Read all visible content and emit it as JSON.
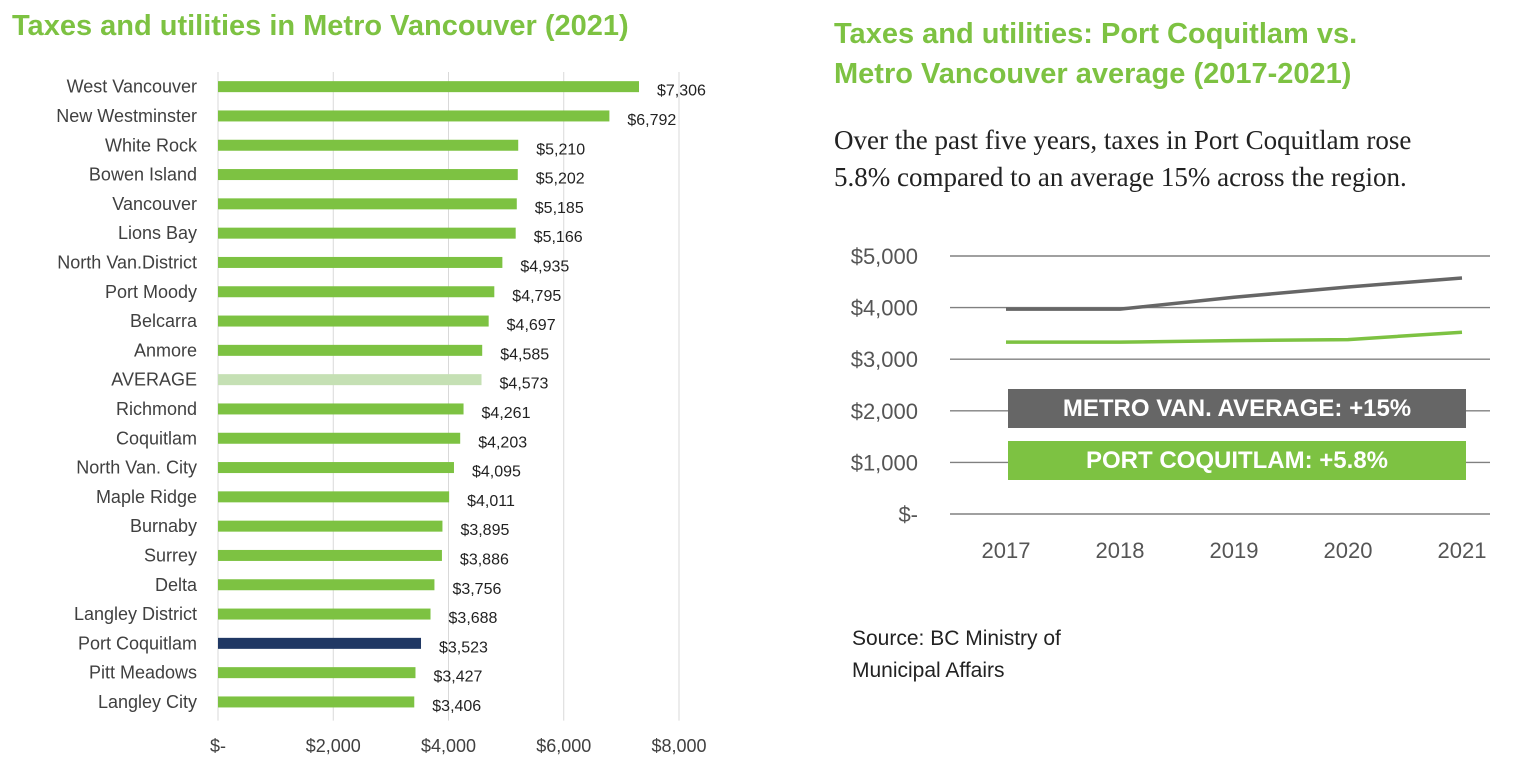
{
  "left_title": "Taxes and utilities in Metro Vancouver (2021)",
  "right_title_lines": [
    "Taxes and utilities: Port Coquitlam vs.",
    "Metro Vancouver average (2017-2021)"
  ],
  "description_lines": [
    "Over the past five years, taxes in Port Coquitlam rose",
    "5.8% compared to an average 15% across the region."
  ],
  "source_lines": [
    "Source: BC Ministry of",
    "Municipal Affairs"
  ],
  "colors": {
    "green": "#7dc242",
    "light_green": "#c5e0b4",
    "navy": "#203864",
    "gray": "#666666"
  },
  "chart_data": [
    {
      "type": "bar",
      "orientation": "horizontal",
      "title": "Taxes and utilities in Metro Vancouver (2021)",
      "categories": [
        "West Vancouver",
        "New Westminster",
        "White Rock",
        "Bowen Island",
        "Vancouver",
        "Lions Bay",
        "North Van.District",
        "Port Moody",
        "Belcarra",
        "Anmore",
        "AVERAGE",
        "Richmond",
        "Coquitlam",
        "North Van. City",
        "Maple Ridge",
        "Burnaby",
        "Surrey",
        "Delta",
        "Langley District",
        "Port Coquitlam",
        "Pitt Meadows",
        "Langley City"
      ],
      "values": [
        7306,
        6792,
        5210,
        5202,
        5185,
        5166,
        4935,
        4795,
        4697,
        4585,
        4573,
        4261,
        4203,
        4095,
        4011,
        3895,
        3886,
        3756,
        3688,
        3523,
        3427,
        3406
      ],
      "value_labels": [
        "$7,306",
        "$6,792",
        "$5,210",
        "$5,202",
        "$5,185",
        "$5,166",
        "$4,935",
        "$4,795",
        "$4,697",
        "$4,585",
        "$4,573",
        "$4,261",
        "$4,203",
        "$4,095",
        "$4,011",
        "$3,895",
        "$3,886",
        "$3,756",
        "$3,688",
        "$3,523",
        "$3,427",
        "$3,406"
      ],
      "highlight": {
        "AVERAGE": "light",
        "Port Coquitlam": "dark"
      },
      "xlim": [
        0,
        8000
      ],
      "xticks": [
        0,
        2000,
        4000,
        6000,
        8000
      ],
      "xtick_labels": [
        "$-",
        "$2,000",
        "$4,000",
        "$6,000",
        "$8,000"
      ],
      "grid": true
    },
    {
      "type": "line",
      "title": "Taxes and utilities: Port Coquitlam vs. Metro Vancouver average (2017-2021)",
      "x": [
        "2017",
        "2018",
        "2019",
        "2020",
        "2021"
      ],
      "series": [
        {
          "name": "METRO VAN. AVERAGE: +15%",
          "values": [
            3970,
            3970,
            4200,
            4400,
            4573
          ],
          "color": "#666666"
        },
        {
          "name": "PORT COQUITLAM: +5.8%",
          "values": [
            3330,
            3330,
            3360,
            3380,
            3523
          ],
          "color": "#7dc242"
        }
      ],
      "ylim": [
        0,
        5000
      ],
      "yticks": [
        0,
        1000,
        2000,
        3000,
        4000,
        5000
      ],
      "ytick_labels": [
        "$-",
        "$1,000",
        "$2,000",
        "$3,000",
        "$4,000",
        "$5,000"
      ],
      "grid": true
    }
  ]
}
